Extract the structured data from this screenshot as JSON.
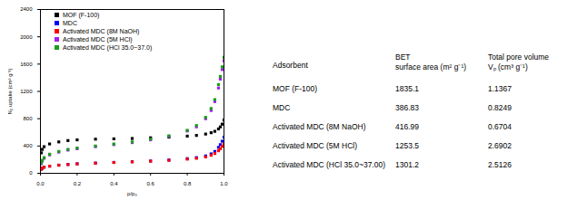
{
  "chart_data": {
    "type": "scatter",
    "xlabel": "p/p₀",
    "ylabel": "N₂ uptake (cm³ g⁻¹)",
    "x": [
      0.005,
      0.01,
      0.02,
      0.05,
      0.1,
      0.15,
      0.2,
      0.3,
      0.4,
      0.5,
      0.6,
      0.7,
      0.8,
      0.85,
      0.9,
      0.93,
      0.95,
      0.97,
      0.98,
      0.99,
      1.0
    ],
    "series": [
      {
        "name": "MOF (F-100)",
        "color": "#000000",
        "marker": "square",
        "values": [
          300,
          350,
          390,
          430,
          460,
          480,
          490,
          500,
          505,
          510,
          520,
          530,
          545,
          555,
          575,
          595,
          615,
          650,
          680,
          720,
          780
        ]
      },
      {
        "name": "MDC",
        "color": "#0000ff",
        "marker": "square",
        "values": [
          60,
          75,
          90,
          105,
          120,
          130,
          140,
          150,
          160,
          170,
          180,
          195,
          215,
          230,
          255,
          285,
          320,
          380,
          420,
          470,
          530
        ]
      },
      {
        "name": "Activated MDC (8M NaOH)",
        "color": "#ff0000",
        "marker": "square",
        "values": [
          60,
          75,
          90,
          105,
          118,
          128,
          138,
          148,
          158,
          168,
          178,
          190,
          208,
          220,
          240,
          265,
          290,
          330,
          360,
          395,
          430
        ]
      },
      {
        "name": "Activated MDC (5M HCl)",
        "color": "#a020f0",
        "marker": "square",
        "values": [
          140,
          180,
          220,
          270,
          310,
          340,
          360,
          390,
          420,
          450,
          490,
          540,
          620,
          680,
          800,
          920,
          1050,
          1250,
          1380,
          1520,
          1650
        ]
      },
      {
        "name": "Activated MDC (HCl 35.0~37.0)",
        "color": "#1a9e1a",
        "marker": "square",
        "values": [
          150,
          190,
          230,
          280,
          320,
          350,
          370,
          400,
          430,
          460,
          500,
          550,
          630,
          700,
          820,
          950,
          1080,
          1300,
          1420,
          1560,
          1700
        ]
      }
    ],
    "xlim": [
      0,
      1.0
    ],
    "xticks": [
      {
        "value": 0,
        "label": "0.0"
      },
      {
        "value": 0.2,
        "label": "0.2"
      },
      {
        "value": 0.4,
        "label": "0.4"
      },
      {
        "value": 0.6,
        "label": "0.6"
      },
      {
        "value": 0.8,
        "label": "0.8"
      },
      {
        "value": 1.0,
        "label": "1.0"
      }
    ],
    "ylim": [
      0,
      2400
    ],
    "yticks": [
      0,
      400,
      800,
      1200,
      1600,
      2000,
      2400
    ],
    "grid": false,
    "legend": "top-left"
  },
  "table": {
    "header": [
      [
        "Adsorbent"
      ],
      [
        "BET",
        "surface area (m² g⁻¹)"
      ],
      [
        "Total pore volume",
        "Vₚ (cm³ g⁻¹)"
      ]
    ],
    "rows": [
      [
        "MOF (F-100)",
        1835.1,
        1.1367
      ],
      [
        "MDC",
        386.83,
        0.8249
      ],
      [
        "Activated MDC (8M NaOH)",
        416.99,
        0.6704
      ],
      [
        "Activated MDC (5M HCl)",
        1253.5,
        2.6902
      ],
      [
        "Activated MDC (HCl 35.0~37.00)",
        1301.2,
        2.5126
      ]
    ]
  }
}
